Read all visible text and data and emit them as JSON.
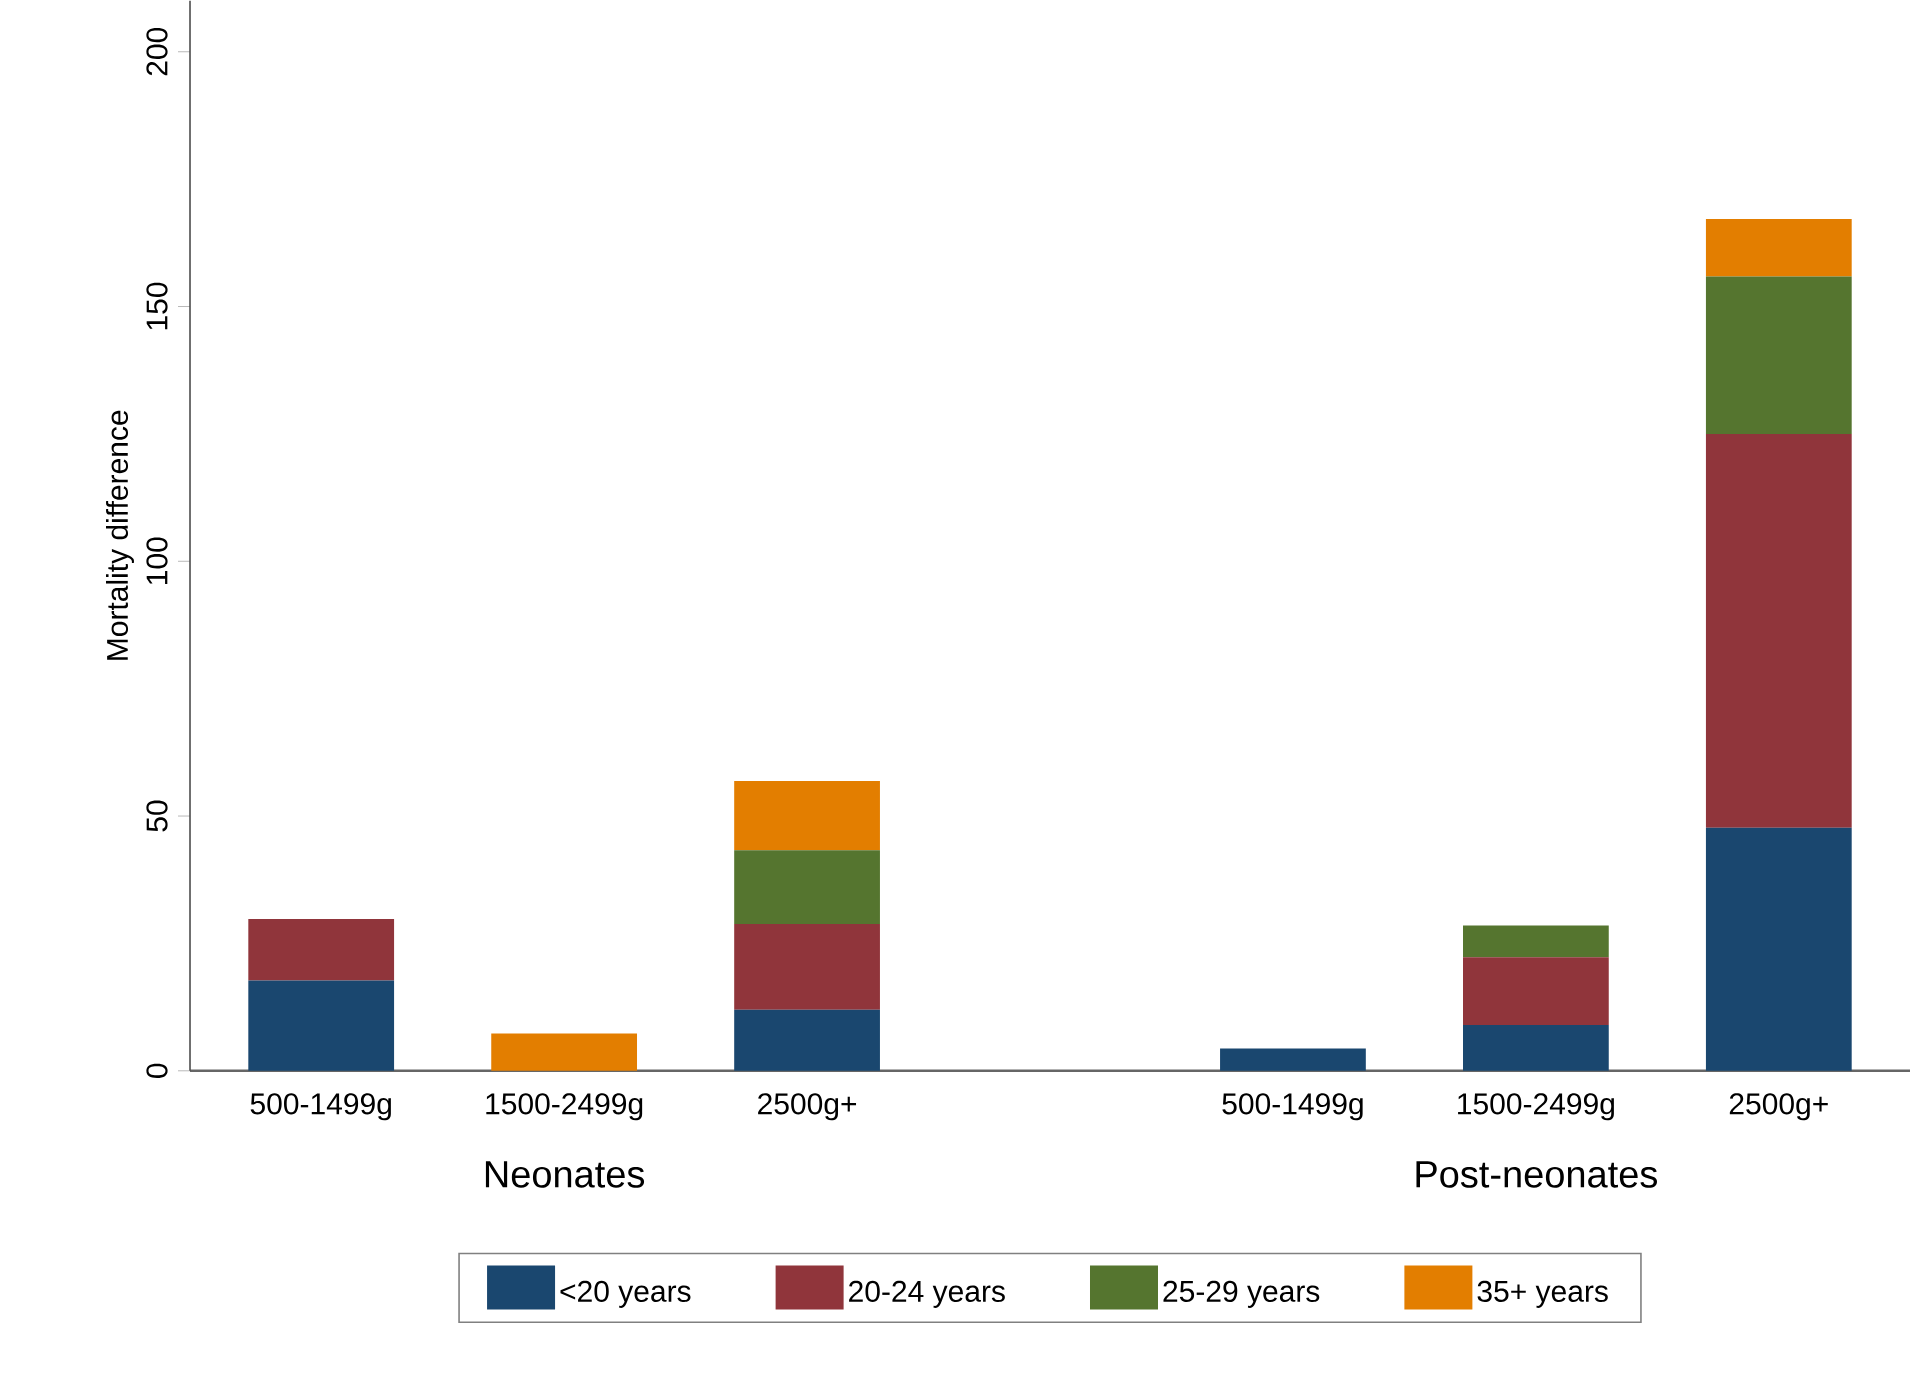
{
  "chart_data": {
    "type": "bar",
    "stacked": true,
    "ylabel": "Mortality difference",
    "categories": [
      "500-1499g",
      "1500-2499g",
      "2500g+",
      null,
      "500-1499g",
      "1500-2499g",
      "2500g+"
    ],
    "series": [
      {
        "name": "<20 years",
        "color": "#1a476f",
        "values": [
          17.7,
          0,
          12,
          null,
          4.4,
          9,
          47.7
        ]
      },
      {
        "name": "20-24 years",
        "color": "#90353b",
        "values": [
          12.1,
          0,
          16.8,
          null,
          0,
          13.3,
          77.3
        ]
      },
      {
        "name": "25-29 years",
        "color": "#55752f",
        "values": [
          0,
          0,
          14.5,
          null,
          0,
          6.2,
          30.9
        ]
      },
      {
        "name": "35+ years",
        "color": "#e37e00",
        "values": [
          0,
          7.3,
          13.6,
          null,
          0,
          0,
          11.3
        ]
      }
    ],
    "annotations": [
      "Neonates",
      "Post-neonates"
    ],
    "ylim": [
      0,
      210
    ],
    "yticks": [
      0,
      50,
      100,
      150,
      200
    ],
    "grid": false,
    "legend": "bottom"
  }
}
